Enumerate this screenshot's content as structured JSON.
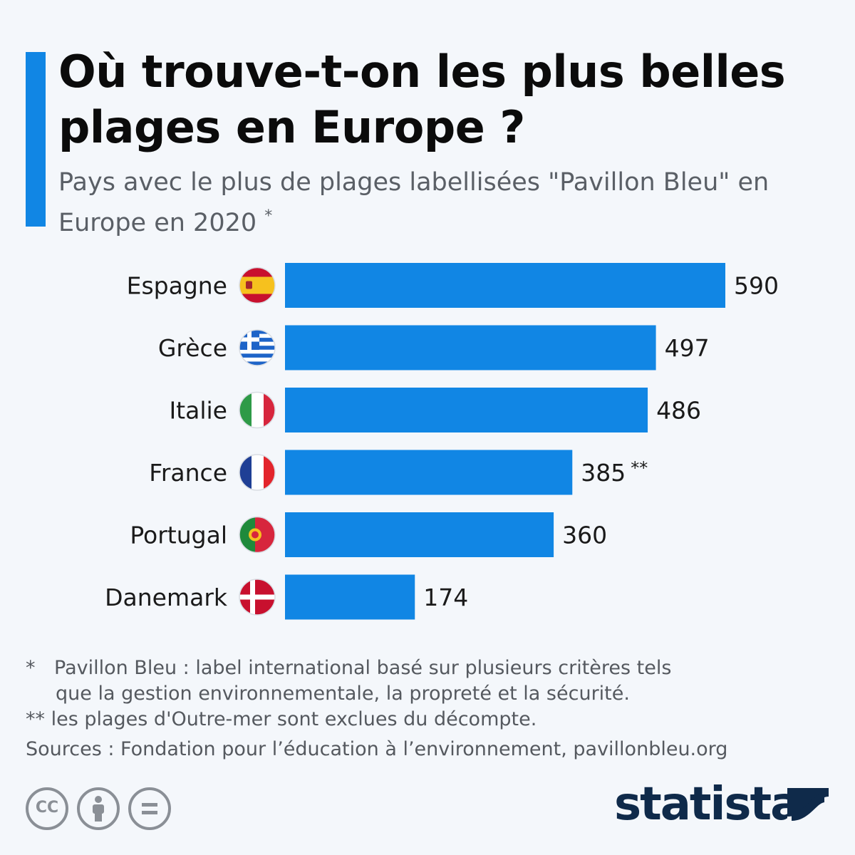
{
  "header": {
    "title": "Où trouve-t-on les plus belles plages en Europe ?",
    "subtitle": "Pays avec le plus de plages labellisées \"Pavillon Bleu\" en Europe en 2020",
    "subtitle_note": "*"
  },
  "chart_data": {
    "type": "bar",
    "orientation": "horizontal",
    "categories": [
      "Espagne",
      "Grèce",
      "Italie",
      "France",
      "Portugal",
      "Danemark"
    ],
    "values": [
      590,
      497,
      486,
      385,
      360,
      174
    ],
    "value_labels": [
      "590",
      "497",
      "486",
      "385",
      "360",
      "174"
    ],
    "value_notes": [
      "",
      "",
      "",
      "**",
      "",
      ""
    ],
    "flags": [
      "spain-flag-icon",
      "greece-flag-icon",
      "italy-flag-icon",
      "france-flag-icon",
      "portugal-flag-icon",
      "denmark-flag-icon"
    ],
    "bar_color": "#1186e4",
    "grid": false
  },
  "footnotes": {
    "note1_mark": "*",
    "note1_line1": "Pavillon Bleu : label international basé sur plusieurs critères tels",
    "note1_line2": "que la gestion environnementale, la propreté et la sécurité.",
    "note2": "** les plages d'Outre-mer sont exclues du décompte.",
    "sources": "Sources : Fondation pour l’éducation à l’environnement, pavillonbleu.org"
  },
  "license_icons": {
    "cc": "CC",
    "names": [
      "cc-icon",
      "attribution-icon",
      "no-derivatives-icon"
    ]
  },
  "brand": {
    "name": "statista",
    "color": "#0f2a4a",
    "accent": "#1186e4"
  }
}
